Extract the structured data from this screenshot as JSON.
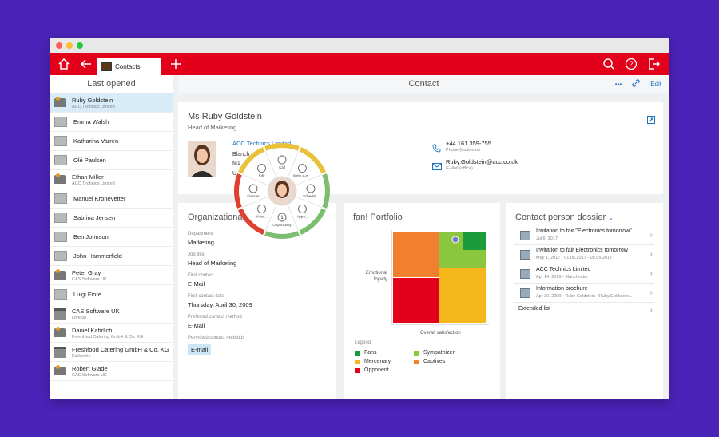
{
  "toolbar": {
    "tab_label": "Contacts"
  },
  "sidebar": {
    "title": "Last opened",
    "items": [
      {
        "name": "Ruby Goldstein",
        "sub": "ACC Technics Limited",
        "icon": "person"
      },
      {
        "name": "Emma Walsh",
        "sub": "",
        "icon": "plain"
      },
      {
        "name": "Katharina Varren",
        "sub": "",
        "icon": "plain"
      },
      {
        "name": "Olé Paulsen",
        "sub": "",
        "icon": "plain"
      },
      {
        "name": "Ethan Miller",
        "sub": "ACC Technics Limited",
        "icon": "person"
      },
      {
        "name": "Manuel Kronevetter",
        "sub": "",
        "icon": "plain"
      },
      {
        "name": "Sabrina Jensen",
        "sub": "",
        "icon": "plain"
      },
      {
        "name": "Ben Johnson",
        "sub": "",
        "icon": "plain"
      },
      {
        "name": "John Hammerfield",
        "sub": "",
        "icon": "plain"
      },
      {
        "name": "Peter Gray",
        "sub": "CAS Software UK",
        "icon": "person"
      },
      {
        "name": "Luigi Fiore",
        "sub": "",
        "icon": "plain"
      },
      {
        "name": "CAS Software UK",
        "sub": "London",
        "icon": "company"
      },
      {
        "name": "Daniel Kahrlich",
        "sub": "Freshfood Catering GmbH & Co. KG",
        "icon": "person"
      },
      {
        "name": "Freshfood Catering GmbH & Co. KG",
        "sub": "Karlsruhe",
        "icon": "company"
      },
      {
        "name": "Robert Glade",
        "sub": "CAS Software UK",
        "icon": "person"
      }
    ]
  },
  "header": {
    "title": "Contact",
    "more": "•••",
    "edit": "Edit"
  },
  "contact": {
    "name": "Ms Ruby Goldstein",
    "position": "Head of Marketing",
    "company": "ACC Technics Limited",
    "addr1": "Blanch",
    "addr2": "M1",
    "addr3": "U",
    "phone": "+44 161 359-755",
    "phone_label": "Phone (business)",
    "email": "Ruby.Goldstein@acc.co.uk",
    "email_label": "E-Mail (office)"
  },
  "radial_menu": {
    "items": [
      "Call",
      "Write e-m...",
      "Schedul...",
      "Appo...",
      "Opportunity",
      "New...",
      "Dossier",
      "Edit"
    ],
    "badge": "1"
  },
  "org": {
    "title": "Organizational",
    "fields": [
      {
        "label": "Department",
        "value": "Marketing"
      },
      {
        "label": "Job title",
        "value": "Head of Marketing"
      },
      {
        "label": "First contact",
        "value": "E-Mail"
      },
      {
        "label": "First contact date",
        "value": "Thursday, April 30, 2009"
      },
      {
        "label": "Preferred contact method",
        "value": "E-Mail"
      }
    ],
    "permitted_label": "Permitted contact methods",
    "permitted_value": "E-mail"
  },
  "portfolio": {
    "title": "fan! Portfolio",
    "y_label_1": "Emotional",
    "y_label_2": "loyalty",
    "x_label": "Overall satisfaction",
    "legend_title": "Legend",
    "legend": [
      {
        "label": "Fans",
        "color": "#1a9c3a"
      },
      {
        "label": "Sympathizer",
        "color": "#8cc63f"
      },
      {
        "label": "Mercenary",
        "color": "#f5b71b"
      },
      {
        "label": "Captives",
        "color": "#f07f2e"
      },
      {
        "label": "Opponent",
        "color": "#e2001a"
      }
    ]
  },
  "dossier": {
    "title": "Contact person dossier",
    "items": [
      {
        "title": "Invitation to fair \"Electronics tomorrow\"",
        "sub": "Jul 6, 2017"
      },
      {
        "title": "Invitation to fair Electronics tomorrow",
        "sub": "May 1, 2017 - 01.05.2017 - 05.05.2017"
      },
      {
        "title": "ACC Technics Limited",
        "sub": "Apr 14, 2016 - Manchester"
      },
      {
        "title": "Information brochure",
        "sub": "Apr 30, 2009 - Ruby Goldstein <Ruby.Goldstein..."
      }
    ],
    "extended": "Extended list"
  }
}
